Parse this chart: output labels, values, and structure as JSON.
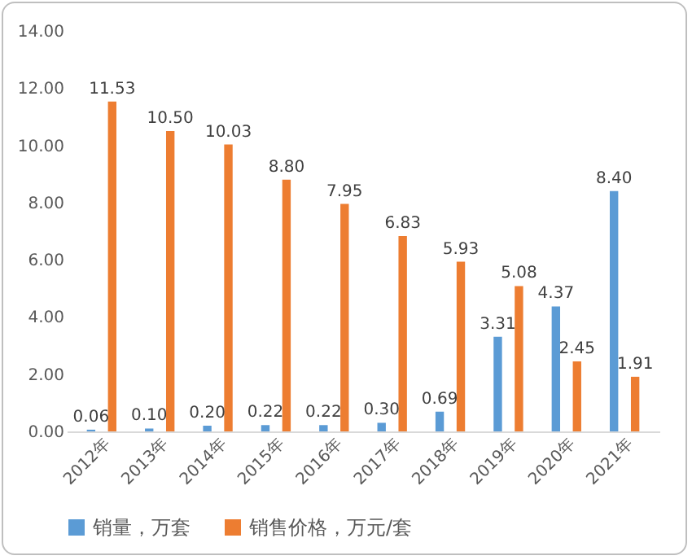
{
  "chart_data": {
    "type": "bar",
    "categories": [
      "2012年",
      "2013年",
      "2014年",
      "2015年",
      "2016年",
      "2017年",
      "2018年",
      "2019年",
      "2020年",
      "2021年"
    ],
    "series": [
      {
        "name": "销量，万套",
        "color": "#5b9bd5",
        "values": [
          0.06,
          0.1,
          0.2,
          0.22,
          0.22,
          0.3,
          0.69,
          3.31,
          4.37,
          8.4
        ],
        "value_labels": [
          "0.06",
          "0.10",
          "0.20",
          "0.22",
          "0.22",
          "0.30",
          "0.69",
          "3.31",
          "4.37",
          "8.40"
        ]
      },
      {
        "name": "销售价格，万元/套",
        "color": "#ed7d31",
        "values": [
          11.53,
          10.5,
          10.03,
          8.8,
          7.95,
          6.83,
          5.93,
          5.08,
          2.45,
          1.91
        ],
        "value_labels": [
          "11.53",
          "10.50",
          "10.03",
          "8.80",
          "7.95",
          "6.83",
          "5.93",
          "5.08",
          "2.45",
          "1.91"
        ]
      }
    ],
    "ylim": [
      0,
      14
    ],
    "yticks": [
      {
        "value": 0,
        "label": "0.00"
      },
      {
        "value": 2,
        "label": "2.00"
      },
      {
        "value": 4,
        "label": "4.00"
      },
      {
        "value": 6,
        "label": "6.00"
      },
      {
        "value": 8,
        "label": "8.00"
      },
      {
        "value": 10,
        "label": "10.00"
      },
      {
        "value": 12,
        "label": "12.00"
      },
      {
        "value": 14,
        "label": "14.00"
      }
    ],
    "legend": "bottom"
  }
}
